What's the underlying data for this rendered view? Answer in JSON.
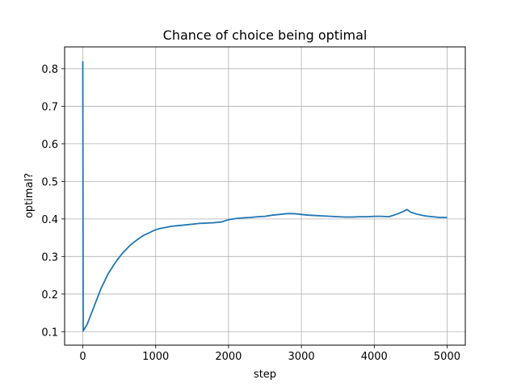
{
  "chart_data": {
    "type": "line",
    "title": "Chance of choice being optimal",
    "xlabel": "step",
    "ylabel": "optimal?",
    "xlim": [
      -250,
      5250
    ],
    "ylim": [
      0.064,
      0.858
    ],
    "x_ticks": [
      0,
      1000,
      2000,
      3000,
      4000,
      5000
    ],
    "x_tick_labels": [
      "0",
      "1000",
      "2000",
      "3000",
      "4000",
      "5000"
    ],
    "y_ticks": [
      0.1,
      0.2,
      0.3,
      0.4,
      0.5,
      0.6,
      0.7,
      0.8
    ],
    "y_tick_labels": [
      "0.1",
      "0.2",
      "0.3",
      "0.4",
      "0.5",
      "0.6",
      "0.7",
      "0.8"
    ],
    "grid": true,
    "series": [
      {
        "name": "optimal?",
        "color": "#1f77b4",
        "x": [
          0,
          5,
          15,
          30,
          60,
          100,
          150,
          200,
          250,
          300,
          350,
          400,
          450,
          500,
          550,
          600,
          650,
          700,
          750,
          800,
          850,
          900,
          950,
          1000,
          1050,
          1100,
          1150,
          1200,
          1300,
          1400,
          1500,
          1600,
          1700,
          1800,
          1900,
          2000,
          2100,
          2200,
          2300,
          2400,
          2500,
          2600,
          2700,
          2800,
          2900,
          3000,
          3100,
          3200,
          3300,
          3400,
          3500,
          3600,
          3700,
          3800,
          3900,
          4000,
          4100,
          4200,
          4300,
          4400,
          4450,
          4500,
          4600,
          4700,
          4800,
          4900,
          5000
        ],
        "y": [
          0.82,
          0.102,
          0.105,
          0.11,
          0.12,
          0.14,
          0.165,
          0.19,
          0.215,
          0.235,
          0.255,
          0.27,
          0.285,
          0.298,
          0.31,
          0.32,
          0.33,
          0.338,
          0.345,
          0.352,
          0.358,
          0.362,
          0.367,
          0.371,
          0.374,
          0.376,
          0.378,
          0.38,
          0.382,
          0.384,
          0.386,
          0.388,
          0.389,
          0.39,
          0.392,
          0.398,
          0.401,
          0.403,
          0.404,
          0.406,
          0.407,
          0.41,
          0.412,
          0.414,
          0.414,
          0.412,
          0.41,
          0.409,
          0.408,
          0.407,
          0.406,
          0.405,
          0.405,
          0.406,
          0.406,
          0.407,
          0.407,
          0.406,
          0.412,
          0.42,
          0.425,
          0.418,
          0.412,
          0.408,
          0.406,
          0.404,
          0.404
        ]
      }
    ]
  }
}
